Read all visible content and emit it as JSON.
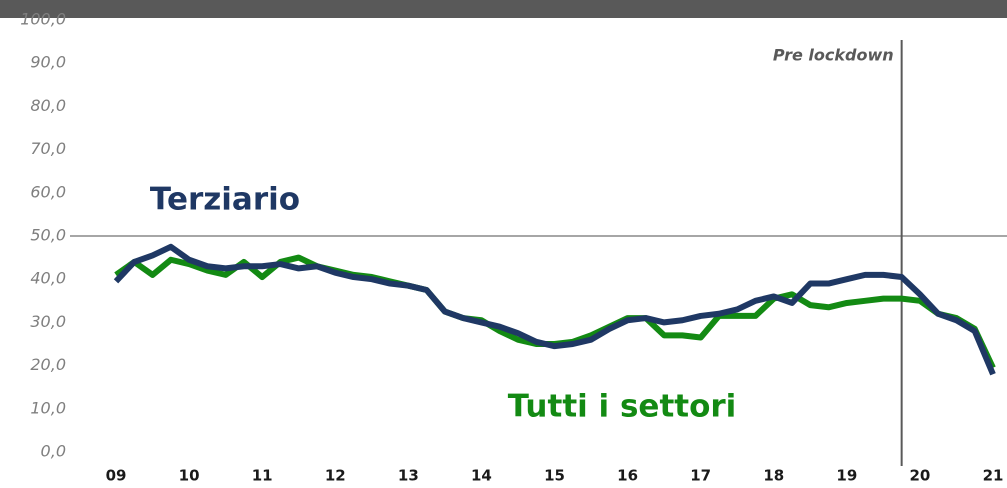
{
  "chart_data": {
    "type": "line",
    "x": [
      9,
      9.25,
      9.5,
      9.75,
      10,
      10.25,
      10.5,
      10.75,
      11,
      11.25,
      11.5,
      11.75,
      12,
      12.25,
      12.5,
      12.75,
      13,
      13.25,
      13.5,
      13.75,
      14,
      14.25,
      14.5,
      14.75,
      15,
      15.25,
      15.5,
      15.75,
      16,
      16.25,
      16.5,
      16.75,
      17,
      17.25,
      17.5,
      17.75,
      18,
      18.25,
      18.5,
      18.75,
      19,
      19.25,
      19.5,
      19.75,
      20,
      20.25,
      20.5,
      20.75,
      21
    ],
    "series": [
      {
        "name": "Tutti i settori",
        "color": "#138a13",
        "values": [
          41,
          44,
          41,
          44.5,
          43.5,
          42,
          41,
          44,
          40.5,
          44,
          45,
          43,
          42,
          41,
          40.5,
          39.5,
          38.5,
          37.5,
          32.5,
          31,
          30.5,
          28,
          26,
          25,
          25,
          25.5,
          27,
          29,
          31,
          31,
          27,
          27,
          26.5,
          31.5,
          31.5,
          31.5,
          35.5,
          36.5,
          34,
          33.5,
          34.5,
          35,
          35.5,
          35.5,
          35,
          32,
          31,
          28.5,
          19.5
        ]
      },
      {
        "name": "Terziario",
        "color": "#1f3864",
        "values": [
          39.5,
          44,
          45.5,
          47.5,
          44.5,
          43,
          42.5,
          43,
          43,
          43.5,
          42.5,
          43,
          41.5,
          40.5,
          40,
          39,
          38.5,
          37.5,
          32.5,
          31,
          30,
          29,
          27.5,
          25.5,
          24.5,
          25,
          26,
          28.5,
          30.5,
          31,
          30,
          30.5,
          31.5,
          32,
          33,
          35,
          36,
          34.5,
          39,
          39,
          40,
          41,
          41,
          40.5,
          36.5,
          32,
          30.5,
          28,
          18
        ]
      }
    ],
    "xlim": [
      9,
      21
    ],
    "xticks": [
      {
        "value": 9,
        "label": "09"
      },
      10,
      11,
      12,
      13,
      14,
      15,
      16,
      17,
      18,
      19,
      20,
      21
    ],
    "ylim": [
      0,
      100
    ],
    "yticks": [
      {
        "value": 0,
        "label": "0,0"
      },
      {
        "value": 10,
        "label": "10,0"
      },
      {
        "value": 20,
        "label": "20,0"
      },
      {
        "value": 30,
        "label": "30,0"
      },
      {
        "value": 40,
        "label": "40,0"
      },
      {
        "value": 50,
        "label": "50,0"
      },
      {
        "value": 60,
        "label": "60,0"
      },
      {
        "value": 70,
        "label": "70,0"
      },
      {
        "value": 80,
        "label": "80,0"
      },
      {
        "value": 90,
        "label": "90,0"
      },
      {
        "value": 100,
        "label": "100,0"
      }
    ],
    "reference_line": {
      "value": 50
    },
    "vline": {
      "x": 19.75,
      "label": "Pre lockdown"
    }
  }
}
